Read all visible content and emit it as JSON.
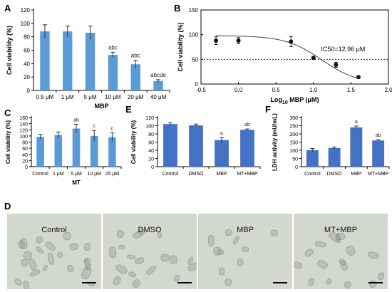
{
  "panel_letters": {
    "A": "A",
    "B": "B",
    "C": "C",
    "D": "D",
    "E": "E",
    "F": "F"
  },
  "chart_data": [
    {
      "id": "A",
      "type": "bar",
      "categories": [
        "0.5 μM",
        "1 μM",
        "5 μM",
        "10 μM",
        "20 μM",
        "40 μM"
      ],
      "values": [
        88,
        88,
        86,
        53,
        39,
        14
      ],
      "errors": [
        10,
        8,
        10,
        4,
        6,
        2
      ],
      "sig": [
        "",
        "",
        "",
        "abc",
        "abc",
        "abcde"
      ],
      "ylabel": "Cell viability (%)",
      "xlabel": "MBP",
      "ylim": [
        0,
        120
      ],
      "yticks": [
        0,
        20,
        40,
        60,
        80,
        100,
        120
      ],
      "bar_color": "#5b9bd5"
    },
    {
      "id": "B",
      "type": "scatter",
      "x": [
        -0.3,
        0.0,
        0.7,
        1.0,
        1.3,
        1.6
      ],
      "y": [
        88,
        88,
        86,
        53,
        39,
        14
      ],
      "errors": [
        8,
        6,
        10,
        3,
        5,
        2
      ],
      "fit": "sigmoid",
      "ic50_log": 1.11,
      "reference_y": 50,
      "annotation": "IC50=12.96 μM",
      "ylabel": "Cell viability (%)",
      "xlabel_main": "Log",
      "xlabel_sub": "10",
      "xlabel_tail": " MBP (μM)",
      "xlim": [
        -0.5,
        2.0
      ],
      "ylim": [
        0,
        150
      ],
      "xticks": [
        "-0.5",
        "0.0",
        "0.5",
        "1.0",
        "1.5",
        "2.0"
      ],
      "yticks": [
        0,
        50,
        100,
        150
      ]
    },
    {
      "id": "C",
      "type": "bar",
      "categories": [
        "Control",
        "1 μM",
        "5 μM",
        "10 μM",
        "25 μM"
      ],
      "values": [
        97,
        103,
        124,
        100,
        96
      ],
      "errors": [
        8,
        10,
        14,
        18,
        14
      ],
      "sig": [
        "",
        "",
        "ab",
        "c",
        "c"
      ],
      "ylabel": "Cell viability (%)",
      "xlabel": "MT",
      "ylim": [
        0,
        160
      ],
      "yticks": [
        0,
        20,
        40,
        60,
        80,
        100,
        120,
        140,
        160
      ],
      "bar_color": "#5b9bd5"
    },
    {
      "id": "E",
      "type": "bar",
      "categories": [
        "Control",
        "DMSO",
        "MBP",
        "MT+MBP"
      ],
      "values": [
        104,
        101,
        65,
        90
      ],
      "errors": [
        3,
        3,
        6,
        2
      ],
      "sig": [
        "",
        "",
        "a",
        "ab"
      ],
      "ylabel": "Cell viability (%)",
      "ylim": [
        0,
        120
      ],
      "yticks": [
        0,
        20,
        40,
        60,
        80,
        100,
        120
      ],
      "bar_color": "#4472c4"
    },
    {
      "id": "F",
      "type": "bar",
      "categories": [
        "Control",
        "DMSO",
        "MBP",
        "MT+MBP"
      ],
      "values": [
        101,
        114,
        240,
        160
      ],
      "errors": [
        10,
        6,
        8,
        5
      ],
      "sig": [
        "",
        "",
        "a",
        "ab"
      ],
      "ylabel": "LDH activity (mU/mL)",
      "ylim": [
        0,
        300
      ],
      "yticks": [
        0,
        50,
        100,
        150,
        200,
        250,
        300
      ],
      "bar_color": "#4472c4"
    }
  ],
  "micrographs": {
    "labels": [
      "Control",
      "DMSO",
      "MBP",
      "MT+MBP"
    ],
    "background_color": "#d3d8cf"
  }
}
